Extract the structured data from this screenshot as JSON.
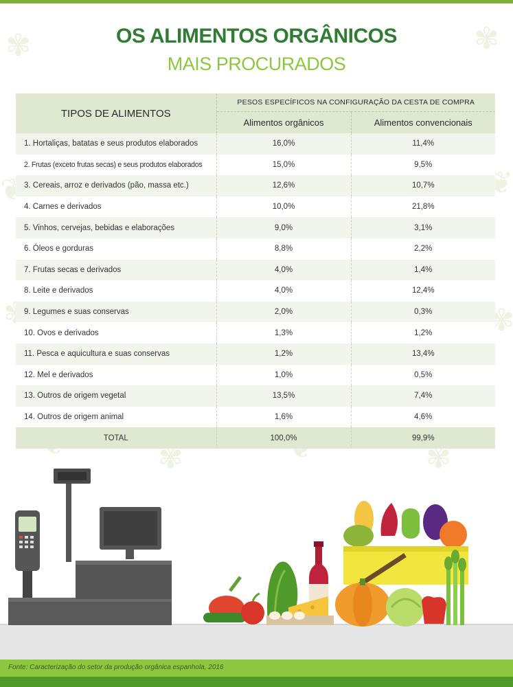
{
  "title": "OS ALIMENTOS ORGÂNICOS",
  "subtitle": "MAIS PROCURADOS",
  "table": {
    "header_tipos": "TIPOS DE ALIMENTOS",
    "header_pesos": "PESOS ESPECÍFICOS NA CONFIGURAÇÃO DA CESTA DE COMPRA",
    "header_organicos": "Alimentos orgânicos",
    "header_convencionais": "Alimentos convencionais",
    "rows": [
      {
        "name": "1. Hortaliças, batatas e seus produtos elaborados",
        "organic": "16,0%",
        "conventional": "11,4%"
      },
      {
        "name": "2. Frutas (exceto frutas secas) e seus produtos elaborados",
        "organic": "15,0%",
        "conventional": "9,5%"
      },
      {
        "name": "3. Cereais, arroz e derivados (pão, massa etc.)",
        "organic": "12,6%",
        "conventional": "10,7%"
      },
      {
        "name": "4. Carnes e derivados",
        "organic": "10,0%",
        "conventional": "21,8%"
      },
      {
        "name": "5. Vinhos, cervejas, bebidas e elaborações",
        "organic": "9,0%",
        "conventional": "3,1%"
      },
      {
        "name": "6. Óleos e gorduras",
        "organic": "8,8%",
        "conventional": "2,2%"
      },
      {
        "name": "7. Frutas secas e derivados",
        "organic": "4,0%",
        "conventional": "1,4%"
      },
      {
        "name": "8. Leite e derivados",
        "organic": "4,0%",
        "conventional": "12,4%"
      },
      {
        "name": "9. Legumes e suas conservas",
        "organic": "2,0%",
        "conventional": "0,3%"
      },
      {
        "name": "10. Ovos e derivados",
        "organic": "1,3%",
        "conventional": "1,2%"
      },
      {
        "name": "11. Pesca e aquicultura e suas conservas",
        "organic": "1,2%",
        "conventional": "13,4%"
      },
      {
        "name": "12. Mel e derivados",
        "organic": "1,0%",
        "conventional": "0,5%"
      },
      {
        "name": "13. Outros de origem vegetal",
        "organic": "13,5%",
        "conventional": "7,4%"
      },
      {
        "name": "14. Outros de origem animal",
        "organic": "1,6%",
        "conventional": "4,6%"
      }
    ],
    "total": {
      "name": "TOTAL",
      "organic": "100,0%",
      "conventional": "99,9%"
    }
  },
  "source": "Fonte: Caracterização do setor da produção orgânica espanhola, 2016",
  "colors": {
    "title": "#2e7d32",
    "subtitle": "#8dc63f",
    "header_bg": "#dfe9d2",
    "stripe": "#f2f5ec",
    "footer": "#8dc63f"
  },
  "illustration": {
    "icons": [
      "cash-register-icon",
      "card-terminal-icon",
      "monitor-icon",
      "vegetables-icon",
      "wine-bottle-icon",
      "cheese-icon",
      "basket-icon",
      "pumpkin-icon",
      "cabbage-icon",
      "asparagus-icon",
      "pepper-icon"
    ]
  }
}
